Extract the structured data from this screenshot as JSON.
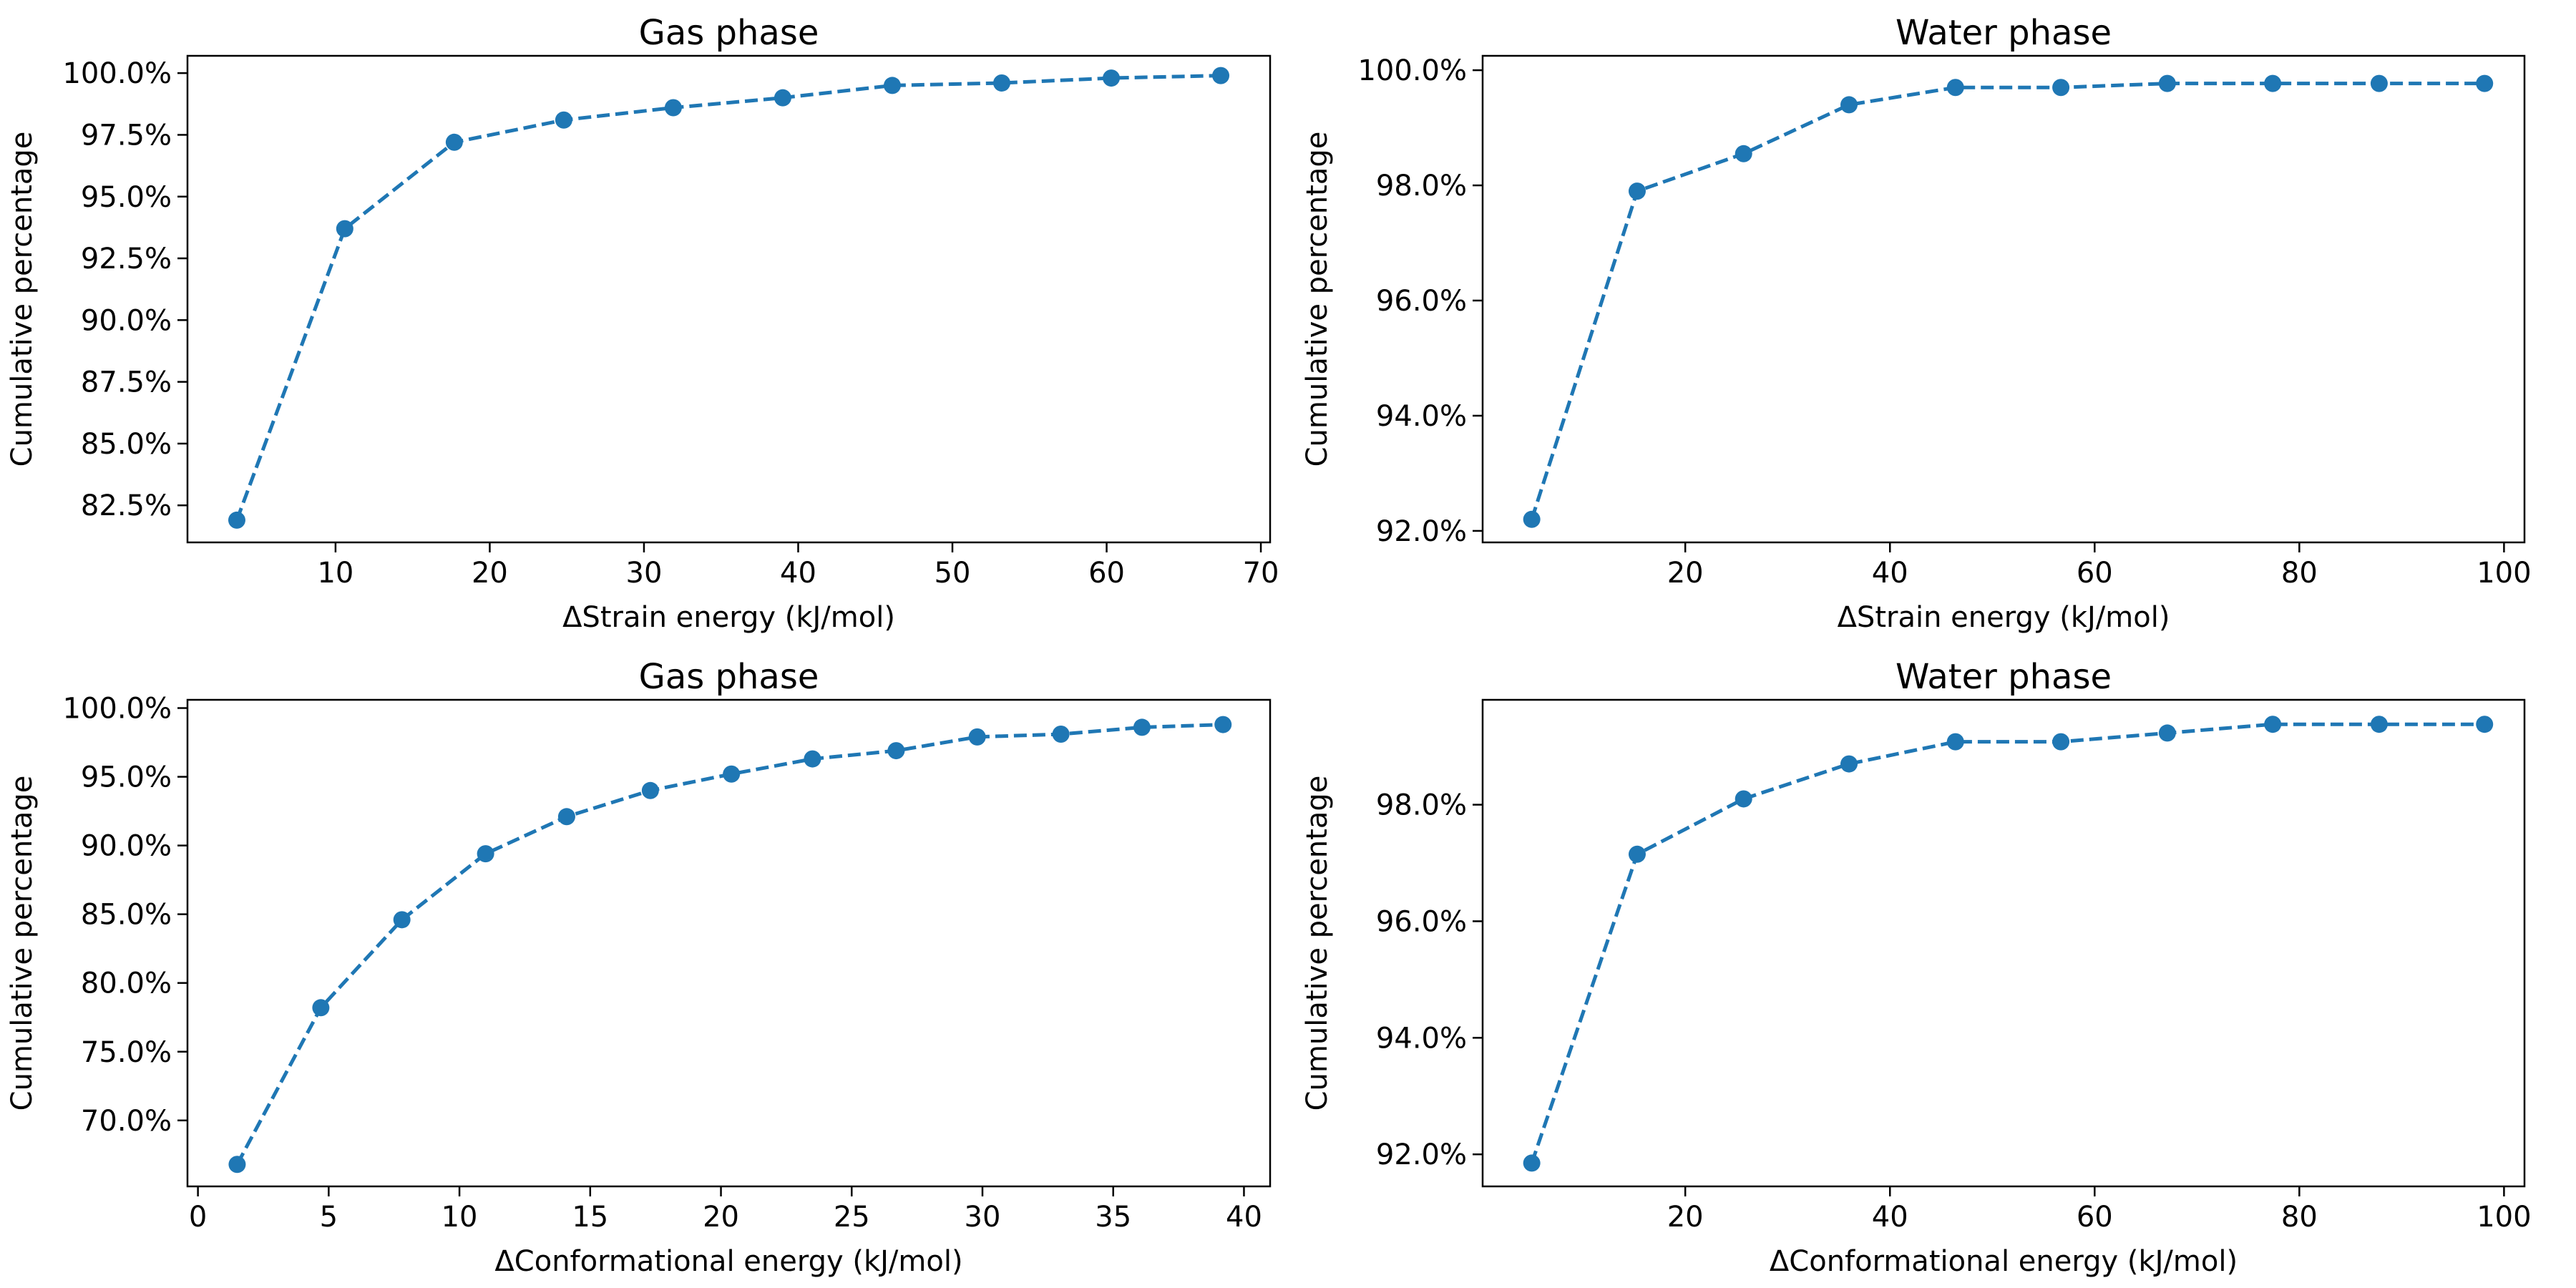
{
  "chart_data": [
    {
      "type": "line",
      "title": "Gas phase",
      "xlabel": "ΔStrain energy (kJ/mol)",
      "ylabel": "Cumulative percentage",
      "xlim": [
        0.4,
        70.6
      ],
      "ylim": [
        81.0,
        100.7
      ],
      "xticks": [
        10,
        20,
        30,
        40,
        50,
        60,
        70
      ],
      "yticks": [
        82.5,
        85.0,
        87.5,
        90.0,
        92.5,
        95.0,
        97.5,
        100.0
      ],
      "yformat": "percent1",
      "grid": false,
      "x": [
        3.6,
        10.6,
        17.7,
        24.8,
        31.9,
        39.0,
        46.1,
        53.2,
        60.3,
        67.4
      ],
      "series": [
        {
          "values": [
            81.9,
            93.7,
            97.2,
            98.1,
            98.6,
            99.0,
            99.5,
            99.6,
            99.8,
            99.9
          ]
        }
      ]
    },
    {
      "type": "line",
      "title": "Water phase",
      "xlabel": "ΔStrain energy (kJ/mol)",
      "ylabel": "Cumulative percentage",
      "xlim": [
        0.2,
        102.0
      ],
      "ylim": [
        91.8,
        100.25
      ],
      "xticks": [
        20,
        40,
        60,
        80,
        100
      ],
      "yticks": [
        92.0,
        94.0,
        96.0,
        98.0,
        100.0
      ],
      "yformat": "percent1",
      "grid": false,
      "x": [
        5.0,
        15.3,
        25.7,
        36.0,
        46.4,
        56.7,
        67.1,
        77.4,
        87.8,
        98.1
      ],
      "series": [
        {
          "values": [
            92.2,
            97.9,
            98.55,
            99.4,
            99.7,
            99.7,
            99.77,
            99.77,
            99.77,
            99.77
          ]
        }
      ]
    },
    {
      "type": "line",
      "title": "Gas phase",
      "xlabel": "ΔConformational energy (kJ/mol)",
      "ylabel": "Cumulative percentage",
      "xlim": [
        -0.4,
        41.0
      ],
      "ylim": [
        65.2,
        100.6
      ],
      "xticks": [
        0,
        5,
        10,
        15,
        20,
        25,
        30,
        35,
        40
      ],
      "yticks": [
        70.0,
        75.0,
        80.0,
        85.0,
        90.0,
        95.0,
        100.0
      ],
      "yformat": "percent1",
      "grid": false,
      "x": [
        1.5,
        4.7,
        7.8,
        11.0,
        14.1,
        17.3,
        20.4,
        23.5,
        26.7,
        29.8,
        33.0,
        36.1,
        39.2
      ],
      "series": [
        {
          "values": [
            66.8,
            78.2,
            84.6,
            89.4,
            92.1,
            94.0,
            95.2,
            96.3,
            96.9,
            97.9,
            98.1,
            98.6,
            98.8
          ]
        }
      ]
    },
    {
      "type": "line",
      "title": "Water phase",
      "xlabel": "ΔConformational energy (kJ/mol)",
      "ylabel": "Cumulative percentage",
      "xlim": [
        0.2,
        102.0
      ],
      "ylim": [
        91.45,
        99.8
      ],
      "xticks": [
        20,
        40,
        60,
        80,
        100
      ],
      "yticks": [
        92.0,
        94.0,
        96.0,
        98.0
      ],
      "yformat": "percent1",
      "grid": false,
      "x": [
        5.0,
        15.3,
        25.7,
        36.0,
        46.4,
        56.7,
        67.1,
        77.4,
        87.8,
        98.1
      ],
      "series": [
        {
          "values": [
            91.85,
            97.15,
            98.1,
            98.7,
            99.08,
            99.08,
            99.23,
            99.38,
            99.38,
            99.38
          ]
        }
      ]
    }
  ]
}
